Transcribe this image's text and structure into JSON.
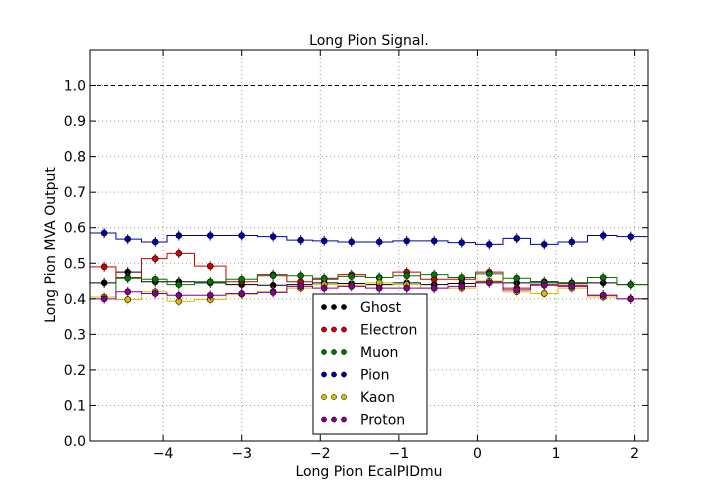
{
  "chart_data": {
    "type": "scatter",
    "title": "Long Pion Signal.",
    "xlabel": "Long Pion EcalPIDmu",
    "ylabel": "Long Pion MVA Output",
    "xlim": [
      -4.93,
      2.17
    ],
    "ylim": [
      0.0,
      1.1
    ],
    "xticks": [
      -4,
      -3,
      -2,
      -1,
      0,
      1,
      2
    ],
    "xtick_labels": [
      "−4",
      "−3",
      "−2",
      "−1",
      "0",
      "1",
      "2"
    ],
    "yticks": [
      0.0,
      0.1,
      0.2,
      0.3,
      0.4,
      0.5,
      0.6,
      0.7,
      0.8,
      0.9,
      1.0
    ],
    "ytick_labels": [
      "0.0",
      "0.1",
      "0.2",
      "0.3",
      "0.4",
      "0.5",
      "0.6",
      "0.7",
      "0.8",
      "0.9",
      "1.0"
    ],
    "grid": true,
    "reference_line": 1.0,
    "legend_position": "bottom-center",
    "x": [
      -4.75,
      -4.45,
      -4.1,
      -3.8,
      -3.4,
      -3.0,
      -2.6,
      -2.25,
      -1.95,
      -1.6,
      -1.25,
      -0.9,
      -0.55,
      -0.2,
      0.15,
      0.5,
      0.85,
      1.2,
      1.6,
      1.95
    ],
    "series": [
      {
        "name": "Ghost",
        "color": "#000000",
        "values": [
          0.445,
          0.475,
          0.448,
          0.448,
          0.445,
          0.44,
          0.438,
          0.44,
          0.445,
          0.443,
          0.44,
          0.445,
          0.44,
          0.443,
          0.448,
          0.445,
          0.448,
          0.445,
          0.445,
          0.44
        ]
      },
      {
        "name": "Electron",
        "color": "#cc0000",
        "values": [
          0.49,
          0.46,
          0.513,
          0.528,
          0.492,
          0.448,
          0.468,
          0.448,
          0.455,
          0.468,
          0.46,
          0.475,
          0.455,
          0.455,
          0.475,
          0.43,
          0.44,
          0.438,
          0.41,
          0.4
        ]
      },
      {
        "name": "Muon",
        "color": "#007700",
        "values": [
          0.405,
          0.458,
          0.455,
          0.44,
          0.448,
          0.455,
          0.465,
          0.465,
          0.458,
          0.463,
          0.46,
          0.465,
          0.468,
          0.46,
          0.47,
          0.458,
          0.445,
          0.443,
          0.46,
          0.44
        ]
      },
      {
        "name": "Pion",
        "color": "#0000aa",
        "values": [
          0.585,
          0.568,
          0.56,
          0.578,
          0.578,
          0.578,
          0.575,
          0.565,
          0.563,
          0.56,
          0.56,
          0.563,
          0.563,
          0.558,
          0.553,
          0.57,
          0.553,
          0.56,
          0.578,
          0.575
        ]
      },
      {
        "name": "Kaon",
        "color": "#ddbb00",
        "values": [
          0.405,
          0.398,
          0.42,
          0.393,
          0.398,
          0.413,
          0.42,
          0.43,
          0.44,
          0.438,
          0.445,
          0.44,
          0.43,
          0.43,
          0.45,
          0.42,
          0.415,
          0.43,
          0.405,
          0.4
        ]
      },
      {
        "name": "Proton",
        "color": "#880088",
        "values": [
          0.4,
          0.42,
          0.415,
          0.41,
          0.41,
          0.415,
          0.418,
          0.435,
          0.43,
          0.435,
          0.43,
          0.43,
          0.43,
          0.435,
          0.445,
          0.425,
          0.438,
          0.435,
          0.41,
          0.4
        ]
      }
    ]
  }
}
